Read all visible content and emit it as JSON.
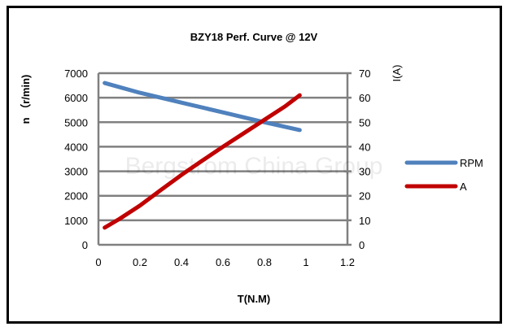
{
  "chart_data": {
    "type": "line",
    "title": "BZY18 Perf.  Curve @ 12V",
    "xlabel": "T(N.M)",
    "ylabel": "n （r/min)",
    "y2label": "I(A)",
    "watermark": "Bergstrom China Group",
    "xlim": [
      0,
      1.2
    ],
    "ylim": [
      0,
      7000
    ],
    "y2lim": [
      0,
      70
    ],
    "xticks": [
      "0",
      "0.2",
      "0.4",
      "0.6",
      "0.8",
      "1",
      "1.2"
    ],
    "yticks": [
      "0",
      "1000",
      "2000",
      "3000",
      "4000",
      "5000",
      "6000",
      "7000"
    ],
    "y2ticks": [
      "0",
      "10",
      "20",
      "30",
      "40",
      "50",
      "60",
      "70"
    ],
    "grid": true,
    "legend_position": "right",
    "series": [
      {
        "name": "RPM",
        "axis": "left",
        "color": "#4f81bd",
        "x": [
          0.03,
          0.2,
          0.4,
          0.6,
          0.8,
          0.97
        ],
        "y": [
          6600,
          6200,
          5800,
          5400,
          5000,
          4680
        ]
      },
      {
        "name": "A",
        "axis": "right",
        "color": "#c00000",
        "x": [
          0.03,
          0.1,
          0.2,
          0.3,
          0.4,
          0.5,
          0.6,
          0.7,
          0.8,
          0.9,
          0.97
        ],
        "y": [
          7,
          10.5,
          16,
          22.3,
          28.5,
          34.3,
          40,
          45.5,
          51,
          56.5,
          61
        ]
      }
    ]
  }
}
